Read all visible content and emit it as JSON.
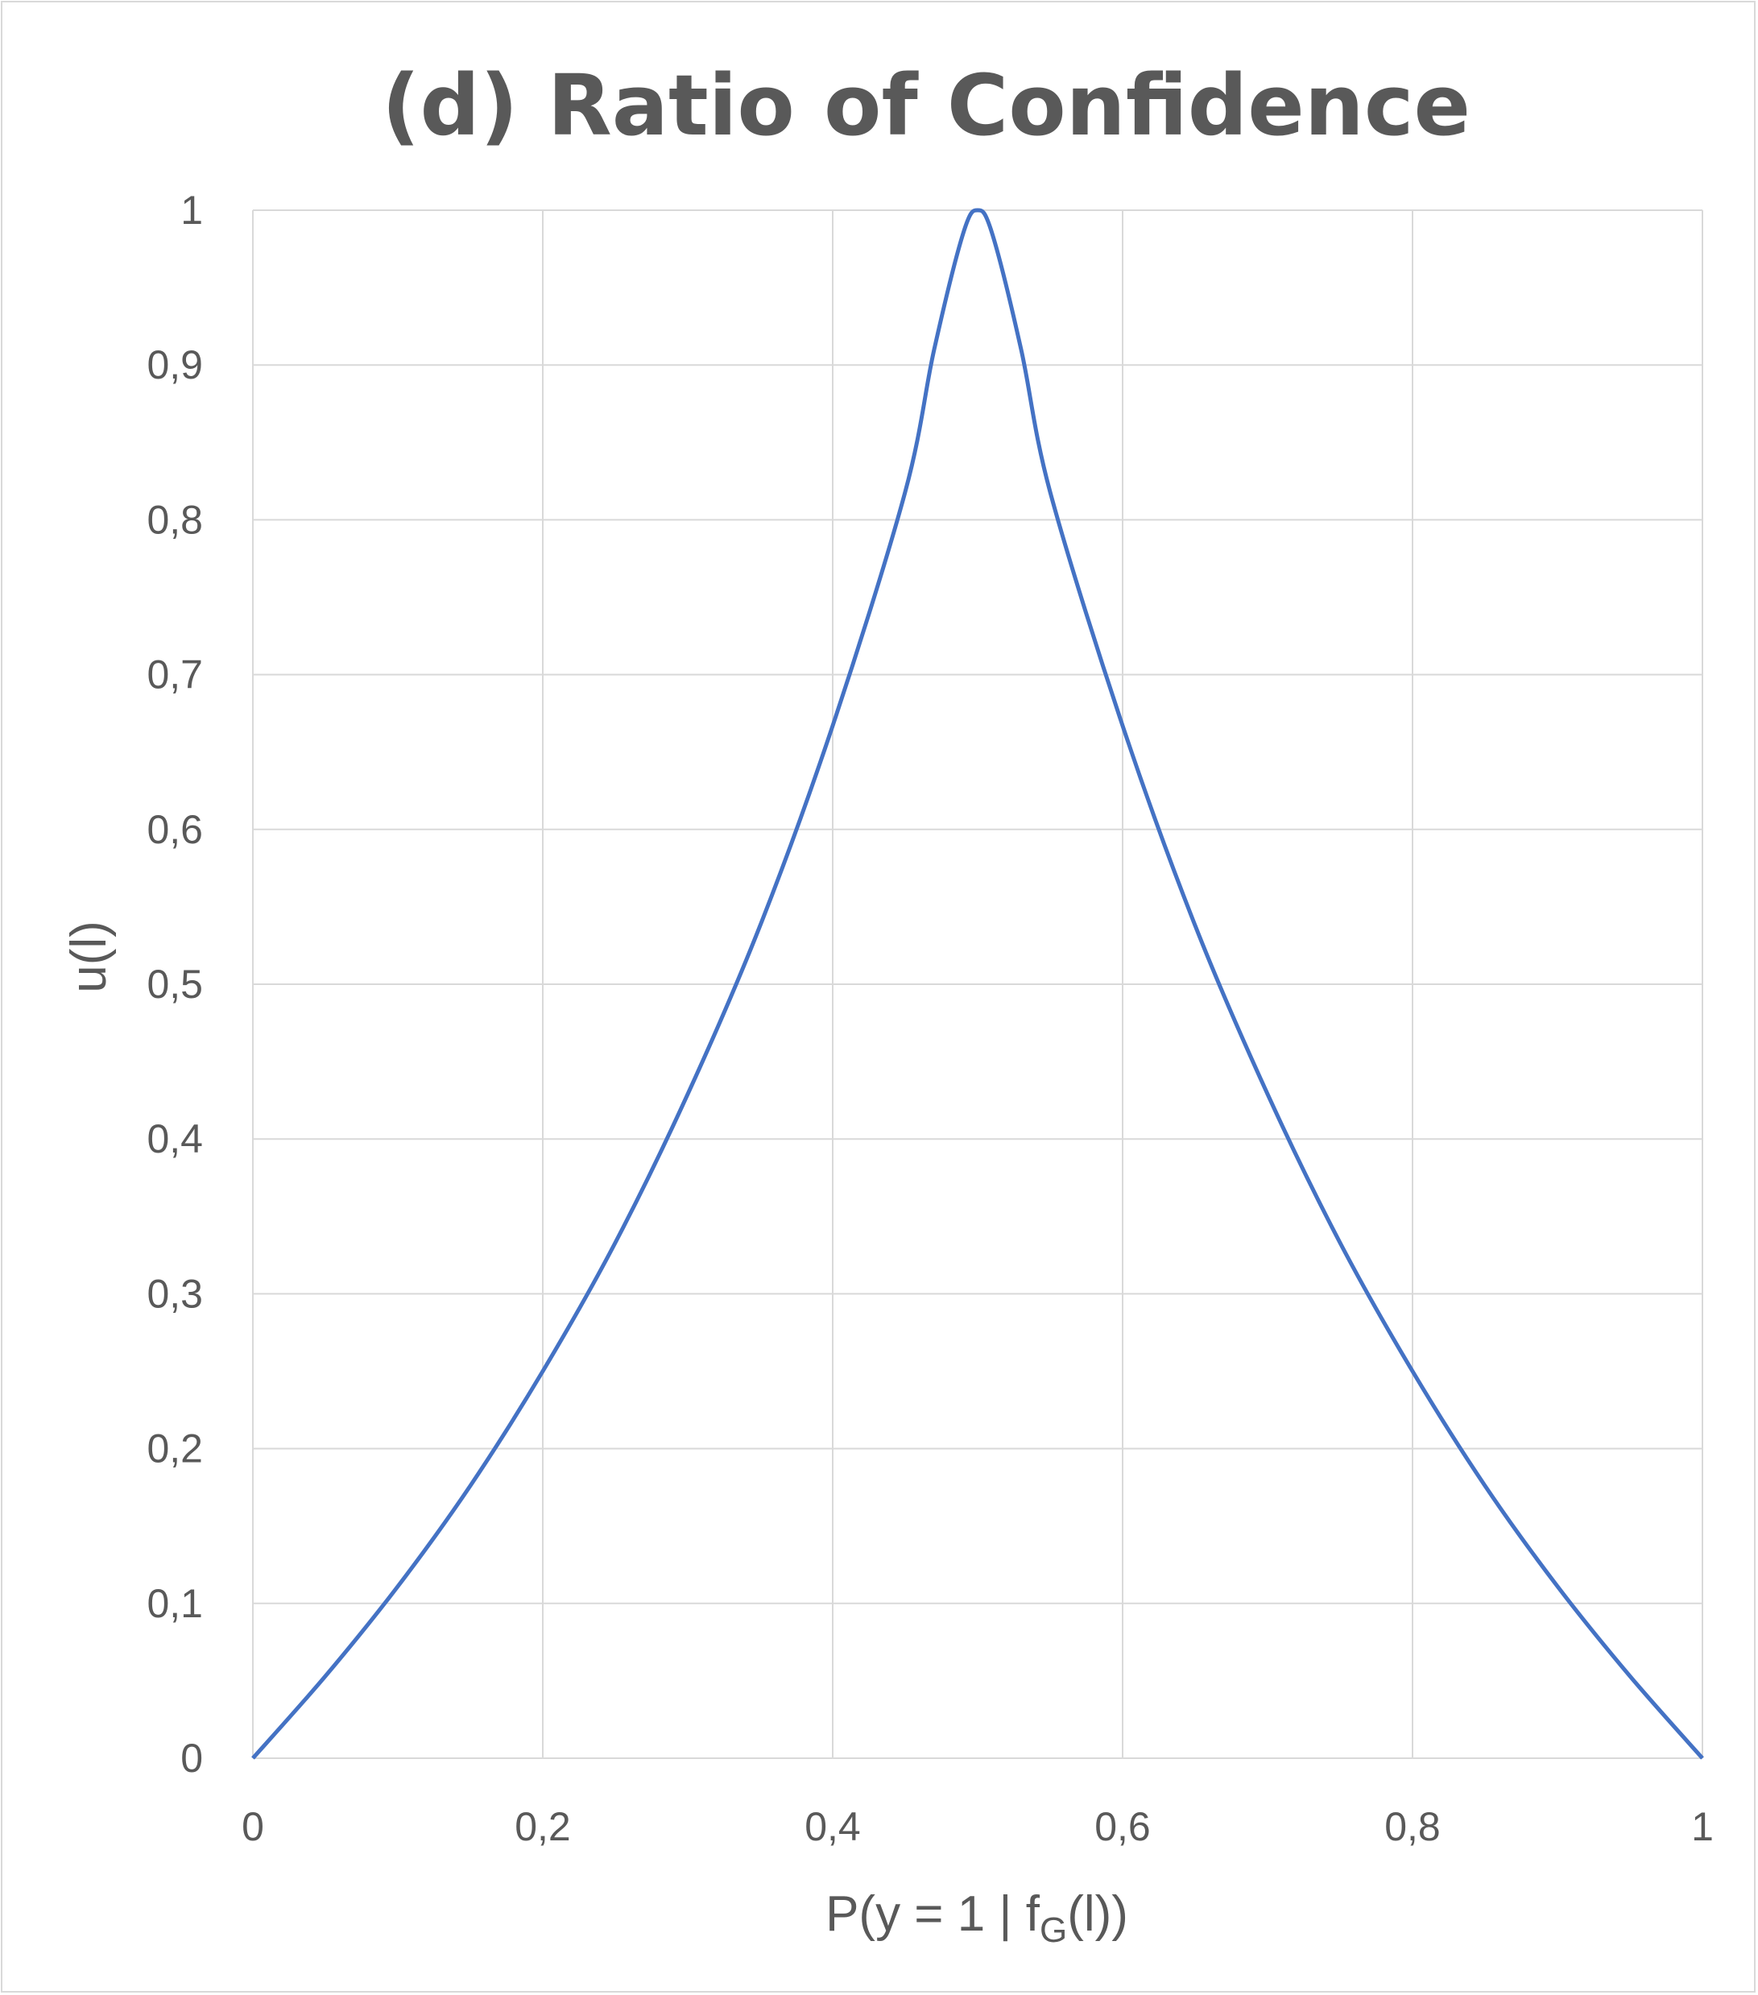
{
  "chart_data": {
    "type": "line",
    "title": "(d) Ratio of Confidence",
    "xlabel": "P(y = 1 | f",
    "xlabel_sub": "G",
    "xlabel_tail": "(l))",
    "ylabel": "u(l)",
    "xlim": [
      0,
      1
    ],
    "ylim": [
      0,
      1
    ],
    "x_ticks": [
      0,
      0.2,
      0.4,
      0.6,
      0.8,
      1
    ],
    "x_tick_labels": [
      "0",
      "0,2",
      "0,4",
      "0,6",
      "0,8",
      "1"
    ],
    "y_ticks": [
      0,
      0.1,
      0.2,
      0.3,
      0.4,
      0.5,
      0.6,
      0.7,
      0.8,
      0.9,
      1
    ],
    "y_tick_labels": [
      "0",
      "0,1",
      "0,2",
      "0,3",
      "0,4",
      "0,5",
      "0,6",
      "0,7",
      "0,8",
      "0,9",
      "1"
    ],
    "grid": true,
    "legend": "none",
    "series": [
      {
        "color": "#4472c4",
        "x": [
          0,
          0.05,
          0.1,
          0.15,
          0.2,
          0.25,
          0.3,
          0.35,
          0.4,
          0.45,
          0.47,
          0.49,
          0.5,
          0.51,
          0.53,
          0.55,
          0.6,
          0.65,
          0.7,
          0.75,
          0.8,
          0.85,
          0.9,
          0.95,
          1
        ],
        "y": [
          0,
          0.053,
          0.111,
          0.176,
          0.25,
          0.333,
          0.429,
          0.538,
          0.667,
          0.818,
          0.91,
          0.985,
          1,
          0.985,
          0.91,
          0.818,
          0.667,
          0.538,
          0.429,
          0.333,
          0.25,
          0.176,
          0.111,
          0.053,
          0
        ]
      }
    ]
  }
}
